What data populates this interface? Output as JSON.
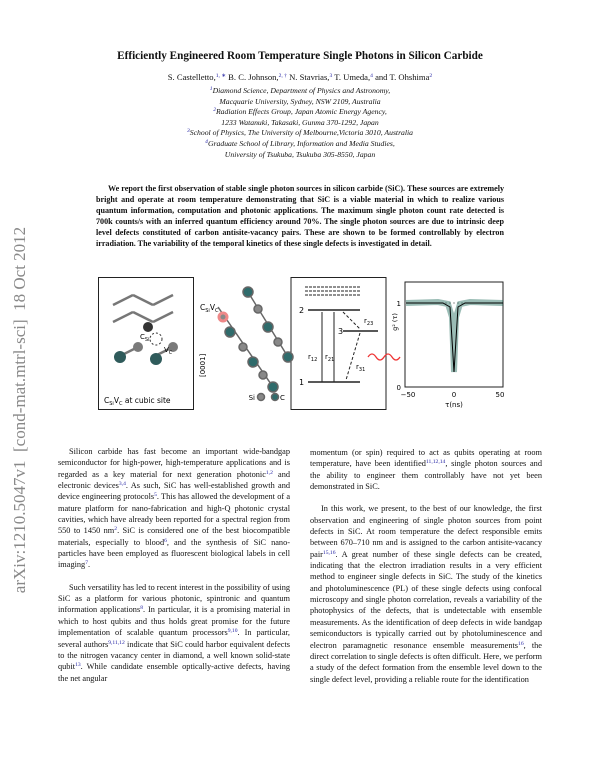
{
  "side_stamp": "arXiv:1210.5047v1  [cond-mat.mtrl-sci]  18 Oct 2012",
  "title": "Efficiently Engineered Room Temperature Single Photons in Silicon Carbide",
  "authors": [
    "S. Castelletto,",
    {
      "sup": "1, ∗"
    },
    " B. C. Johnson,",
    {
      "sup": "2, †"
    },
    " N. Stavrias,",
    {
      "sup": "3"
    },
    " T. Umeda,",
    {
      "sup": "4"
    },
    " and T. Ohshima",
    {
      "sup": "2"
    }
  ],
  "affiliations": [
    {
      "number": "1",
      "lines": [
        "Diamond Science, Department of Physics and Astronomy,",
        "Macquarie University, Sydney, NSW 2109, Australia"
      ]
    },
    {
      "number": "2",
      "lines": [
        "Radiation Effects Group, Japan Atomic Energy Agency,",
        "1233 Watanuki, Takasaki, Gunma 370-1292, Japan"
      ]
    },
    {
      "number": "3",
      "lines": [
        "School of Physics, The University of Melbourne,Victoria 3010, Australia"
      ]
    },
    {
      "number": "4",
      "lines": [
        "Graduate School of Library, Information and Media Studies,",
        "University of Tsukuba, Tsukuba 305-8550, Japan"
      ]
    }
  ],
  "abstract": "We report the first observation of stable single photon sources in silicon carbide (SiC). These sources are extremely bright and operate at room temperature demonstrating that SiC is a viable material in which to realize various quantum information, computation and photonic applications. The maximum single photon count rate detected is 700k counts/s with an inferred quantum efficiency around 70%. The single photon sources are due to intrinsic deep level defects constituted of carbon antisite-vacancy pairs. These are shown to be formed controllably by electron irradiation. The variability of the temporal kinetics of these single defects is investigated in detail.",
  "figure": {
    "crystal_label_1": "C",
    "crystal_label_1_sub": "Si",
    "crystal_label_2": "V",
    "crystal_label_2_sub": "C",
    "crystal_caption": "C",
    "crystal_caption_sub1": "Si",
    "crystal_caption_mid": "V",
    "crystal_caption_sub2": "C",
    "crystal_caption_rest": " at cubic site",
    "chain_label": "C",
    "chain_label_sub1": "Si",
    "chain_label_mid": "V",
    "chain_label_sub2": "C",
    "direction": "[0001]",
    "legend_si": "Si",
    "legend_c": "C",
    "level_2": "2",
    "level_3": "3",
    "level_1": "1",
    "rate_23": "r",
    "rate_23_sub": "23",
    "rate_12": "r",
    "rate_12_sub": "12",
    "rate_21": "r",
    "rate_21_sub": "21",
    "rate_31": "r",
    "rate_31_sub": "31",
    "plot_y_label": "g² (τ)",
    "plot_y_top": "1",
    "plot_y_bottom": "0",
    "plot_x_ticks": [
      "−50",
      "0",
      "50"
    ],
    "plot_x_label": "τ(ns)"
  },
  "left_column": [
    [
      "Silicon carbide has fast become an important wide-bandgap semiconductor for high-power, high-temperature applications and is regarded as a key material for next generation photonic",
      {
        "sup": "1,2"
      },
      " and electronic devices",
      {
        "sup": "3,4"
      },
      ". As such, SiC has well-established growth and device engineering protocols",
      {
        "sup": "5"
      },
      ". This has allowed the development of a mature platform for nano-fabrication and high-Q photonic crystal cavities, which have already been reported for a spectral region from 550 to 1450 nm",
      {
        "sup": "2"
      },
      ". SiC is considered one of the best biocompatible materials, especially to blood",
      {
        "sup": "6"
      },
      ", and the synthesis of SiC nano-particles have been employed as fluorescent biological labels in cell imaging",
      {
        "sup": "7"
      },
      "."
    ],
    [
      "Such versatility has led to recent interest in the possibility of using SiC as a platform for various photonic, spintronic and quantum information applications",
      {
        "sup": "8"
      },
      ". In particular, it is a promising material in which to host qubits and thus holds great promise for the future implementation of scalable quantum processors",
      {
        "sup": "9,10"
      },
      ". In particular, several authors",
      {
        "sup": "9,11,12"
      },
      " indicate that SiC could harbor equivalent defects to the nitrogen vacancy center in diamond, a well known solid-state qubit",
      {
        "sup": "13"
      },
      ". While candidate ensemble optically-active defects, having the net angular"
    ]
  ],
  "right_column": [
    [
      "momentum (or spin) required to act as qubits operating at room temperature, have been identified",
      {
        "sup": "11,12,14"
      },
      ", single photon sources and the ability to engineer them controllably have not yet been demonstrated in SiC."
    ],
    [
      "In this work, we present, to the best of our knowledge, the first observation and engineering of single photon sources from point defects in SiC. At room temperature the defect responsible emits between 670–710 nm and is assigned to the carbon antisite-vacancy pair",
      {
        "sup": "15,16"
      },
      ". A great number of these single defects can be created, indicating that the electron irradiation results in a very efficient method to engineer single defects in SiC. The study of the kinetics and photoluminescence (PL) of these single defects using confocal microscopy and single photon correlation, reveals a variability of the photophysics of the defects, that is undetectable with ensemble measurements. As the identification of deep defects in wide bandgap semiconductors is typically carried out by photoluminescence and electron paramagnetic resonance ensemble measurements",
      {
        "sup": "16"
      },
      ", the direct correlation to single defects is often difficult. Here, we perform a study of the defect formation from the ensemble level down to the single defect level, providing a reliable route for the identification"
    ]
  ]
}
